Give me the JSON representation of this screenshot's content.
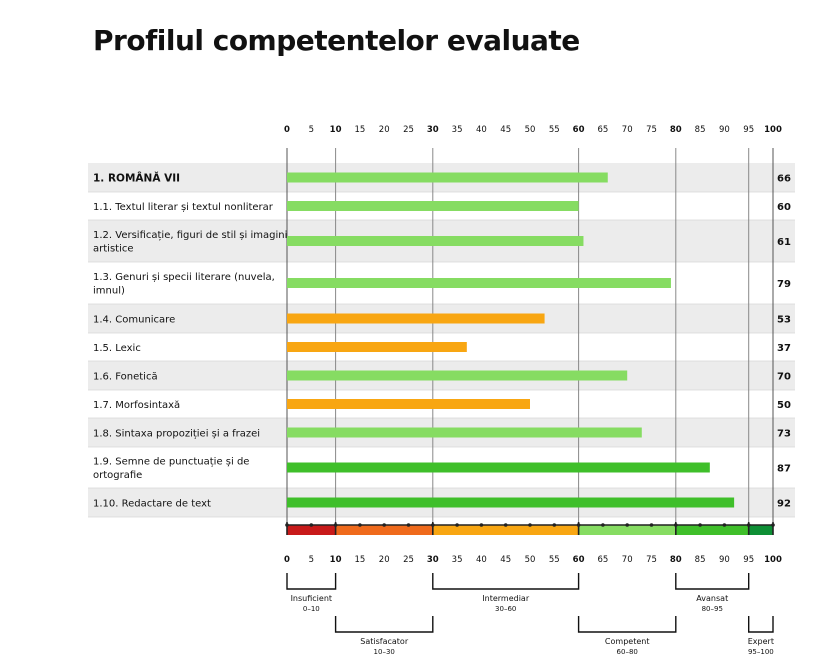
{
  "title": "Profilul competentelor evaluate",
  "chart_data": {
    "type": "bar",
    "orientation": "horizontal",
    "title": "Profilul competentelor evaluate",
    "xlim": [
      0,
      100
    ],
    "ticks": [
      0,
      5,
      10,
      15,
      20,
      25,
      30,
      35,
      40,
      45,
      50,
      55,
      60,
      65,
      70,
      75,
      80,
      85,
      90,
      95,
      100
    ],
    "major_ticks": [
      0,
      10,
      30,
      60,
      80,
      100
    ],
    "categories": [
      "1. ROMÂNĂ VII",
      "1.1. Textul literar și textul nonliterar",
      "1.2. Versificație, figuri de stil și imagini artistice",
      "1.3. Genuri și specii literare (nuvela, imnul)",
      "1.4. Comunicare",
      "1.5. Lexic",
      "1.6. Fonetică",
      "1.7. Morfosintaxă",
      "1.8. Sintaxa propoziției și a frazei",
      "1.9. Semne de punctuație și de ortografie",
      "1.10. Redactare de text"
    ],
    "values": [
      66,
      60,
      61,
      79,
      53,
      37,
      70,
      50,
      73,
      87,
      92
    ],
    "value_labels": [
      "66",
      "60",
      "61",
      "79",
      "53",
      "37",
      "70",
      "50",
      "73",
      "87",
      "92"
    ],
    "levels": [
      {
        "name": "Insuficient",
        "range": "0–10",
        "from": 0,
        "to": 10,
        "color": "#c81a1a"
      },
      {
        "name": "Satisfacator",
        "range": "10–30",
        "from": 10,
        "to": 30,
        "color": "#ef6a1c"
      },
      {
        "name": "Intermediar",
        "range": "30–60",
        "from": 30,
        "to": 60,
        "color": "#f8a612"
      },
      {
        "name": "Competent",
        "range": "60–80",
        "from": 60,
        "to": 80,
        "color": "#86dc62"
      },
      {
        "name": "Avansat",
        "range": "80–95",
        "from": 80,
        "to": 95,
        "color": "#3fbf2a"
      },
      {
        "name": "Expert",
        "range": "95–100",
        "from": 95,
        "to": 100,
        "color": "#0e8f35"
      }
    ],
    "bar_colors": {
      "below_60": "#f8a612",
      "from_60_to_80": "#86dc62",
      "from_80": "#3fbf2a"
    },
    "row_shading": {
      "odd": "#ececec",
      "even": "#ffffff"
    },
    "grid": true,
    "legend": "bottom"
  }
}
